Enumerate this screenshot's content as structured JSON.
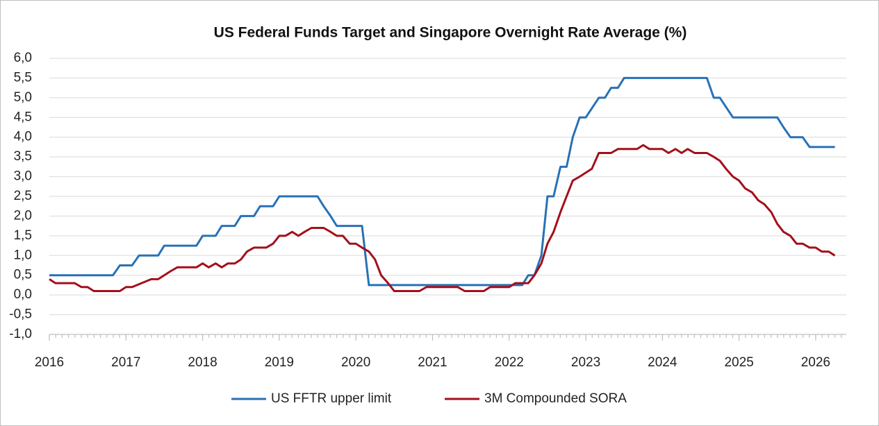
{
  "chart_data": {
    "type": "line",
    "title": "US Federal Funds Target and Singapore Overnight Rate Average (%)",
    "xlim": [
      2016,
      2026.4
    ],
    "xticks": [
      2016,
      2017,
      2018,
      2019,
      2020,
      2021,
      2022,
      2023,
      2024,
      2025,
      2026
    ],
    "ylim": [
      -1,
      6
    ],
    "yticks": [
      {
        "value": -1,
        "label": "-1,0"
      },
      {
        "value": -0.5,
        "label": "-0,5"
      },
      {
        "value": 0,
        "label": "0,0"
      },
      {
        "value": 0.5,
        "label": "0,5"
      },
      {
        "value": 1,
        "label": "1,0"
      },
      {
        "value": 1.5,
        "label": "1,5"
      },
      {
        "value": 2,
        "label": "2,0"
      },
      {
        "value": 2.5,
        "label": "2,5"
      },
      {
        "value": 3,
        "label": "3,0"
      },
      {
        "value": 3.5,
        "label": "3,5"
      },
      {
        "value": 4,
        "label": "4,0"
      },
      {
        "value": 4.5,
        "label": "4,5"
      },
      {
        "value": 5,
        "label": "5,0"
      },
      {
        "value": 5.5,
        "label": "5,5"
      },
      {
        "value": 6,
        "label": "6,0"
      }
    ],
    "grid": true,
    "legend": "bottom",
    "series": [
      {
        "name": "US FFTR upper limit",
        "color": "#2771b5",
        "x": [
          2016.0,
          2016.83,
          2016.92,
          2017.08,
          2017.17,
          2017.42,
          2017.5,
          2017.92,
          2018.0,
          2018.17,
          2018.25,
          2018.42,
          2018.5,
          2018.67,
          2018.75,
          2018.92,
          2019.0,
          2019.5,
          2019.58,
          2019.67,
          2019.75,
          2020.08,
          2020.17,
          2022.08,
          2022.17,
          2022.25,
          2022.33,
          2022.42,
          2022.5,
          2022.58,
          2022.67,
          2022.75,
          2022.83,
          2022.92,
          2023.0,
          2023.17,
          2023.25,
          2023.33,
          2023.42,
          2023.5,
          2024.58,
          2024.67,
          2024.75,
          2024.92,
          2025.5,
          2025.58,
          2025.67,
          2025.83,
          2025.92,
          2026.25
        ],
        "values": [
          0.5,
          0.5,
          0.75,
          0.75,
          1.0,
          1.0,
          1.25,
          1.25,
          1.5,
          1.5,
          1.75,
          1.75,
          2.0,
          2.0,
          2.25,
          2.25,
          2.5,
          2.5,
          2.25,
          2.0,
          1.75,
          1.75,
          0.25,
          0.25,
          0.25,
          0.5,
          0.5,
          1.0,
          2.5,
          2.5,
          3.25,
          3.25,
          4.0,
          4.5,
          4.5,
          5.0,
          5.0,
          5.25,
          5.25,
          5.5,
          5.5,
          5.0,
          5.0,
          4.5,
          4.5,
          4.25,
          4.0,
          4.0,
          3.75,
          3.75
        ]
      },
      {
        "name": "3M Compounded SORA",
        "color": "#a30f1a",
        "x": [
          2016.0,
          2016.08,
          2016.33,
          2016.42,
          2016.5,
          2016.58,
          2016.92,
          2017.0,
          2017.08,
          2017.33,
          2017.42,
          2017.58,
          2017.67,
          2017.92,
          2018.0,
          2018.08,
          2018.17,
          2018.25,
          2018.33,
          2018.42,
          2018.5,
          2018.58,
          2018.67,
          2018.83,
          2018.92,
          2019.0,
          2019.08,
          2019.17,
          2019.25,
          2019.33,
          2019.42,
          2019.58,
          2019.67,
          2019.75,
          2019.83,
          2019.92,
          2020.0,
          2020.08,
          2020.17,
          2020.25,
          2020.33,
          2020.42,
          2020.5,
          2020.83,
          2020.92,
          2021.33,
          2021.42,
          2021.67,
          2021.75,
          2022.0,
          2022.08,
          2022.25,
          2022.33,
          2022.42,
          2022.5,
          2022.58,
          2022.67,
          2022.75,
          2022.83,
          2022.92,
          2023.0,
          2023.08,
          2023.17,
          2023.33,
          2023.42,
          2023.67,
          2023.75,
          2023.83,
          2024.0,
          2024.08,
          2024.17,
          2024.25,
          2024.33,
          2024.42,
          2024.58,
          2024.67,
          2024.75,
          2024.83,
          2024.92,
          2025.0,
          2025.08,
          2025.17,
          2025.25,
          2025.33,
          2025.42,
          2025.5,
          2025.58,
          2025.67,
          2025.75,
          2025.83,
          2025.92,
          2026.0,
          2026.08,
          2026.17,
          2026.25
        ],
        "values": [
          0.4,
          0.3,
          0.3,
          0.2,
          0.2,
          0.1,
          0.1,
          0.2,
          0.2,
          0.4,
          0.4,
          0.6,
          0.7,
          0.7,
          0.8,
          0.7,
          0.8,
          0.7,
          0.8,
          0.8,
          0.9,
          1.1,
          1.2,
          1.2,
          1.3,
          1.5,
          1.5,
          1.6,
          1.5,
          1.6,
          1.7,
          1.7,
          1.6,
          1.5,
          1.5,
          1.3,
          1.3,
          1.2,
          1.1,
          0.9,
          0.5,
          0.3,
          0.1,
          0.1,
          0.2,
          0.2,
          0.1,
          0.1,
          0.2,
          0.2,
          0.3,
          0.3,
          0.5,
          0.8,
          1.3,
          1.6,
          2.1,
          2.5,
          2.9,
          3.0,
          3.1,
          3.2,
          3.6,
          3.6,
          3.7,
          3.7,
          3.8,
          3.7,
          3.7,
          3.6,
          3.7,
          3.6,
          3.7,
          3.6,
          3.6,
          3.5,
          3.4,
          3.2,
          3.0,
          2.9,
          2.7,
          2.6,
          2.4,
          2.3,
          2.1,
          1.8,
          1.6,
          1.5,
          1.3,
          1.3,
          1.2,
          1.2,
          1.1,
          1.1,
          1.0
        ]
      }
    ]
  }
}
